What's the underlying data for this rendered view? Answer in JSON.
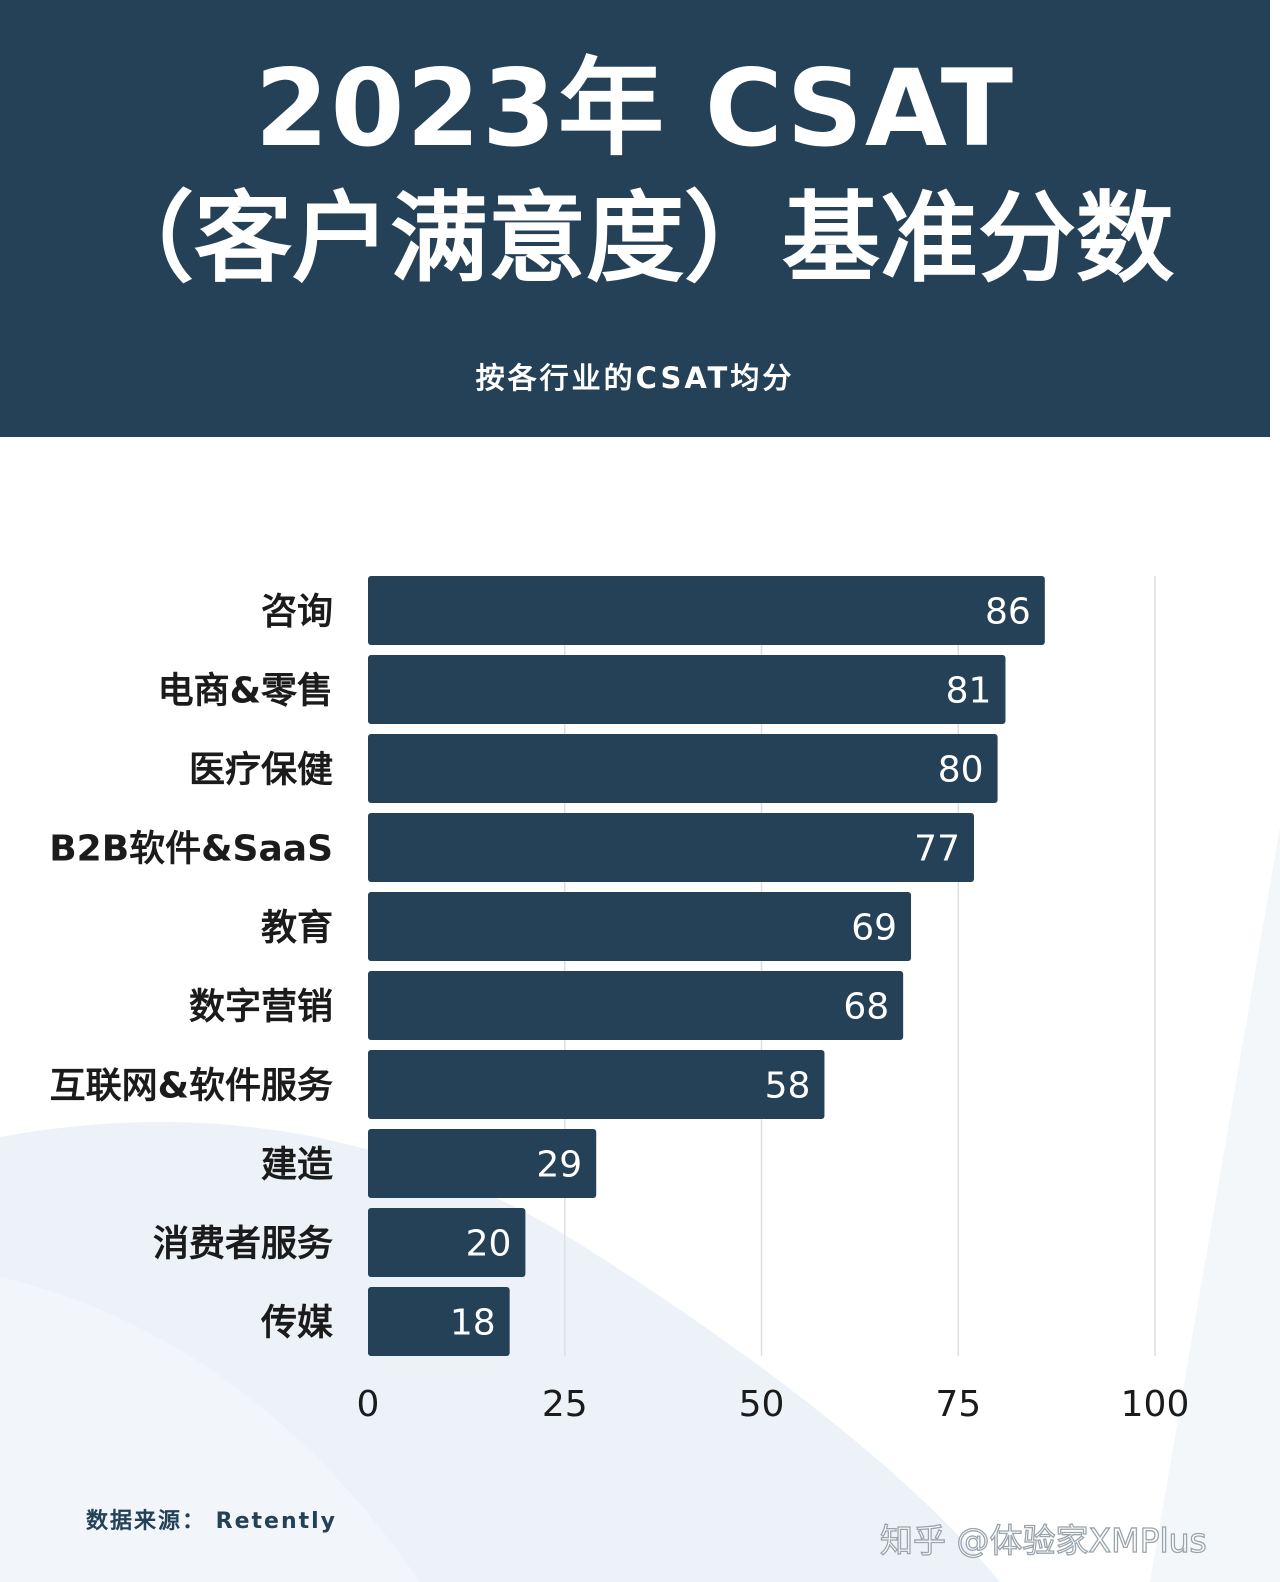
{
  "header": {
    "title_line1": "2023年 CSAT",
    "title_line2": "（客户满意度）基准分数",
    "subtitle": "按各行业的CSAT均分"
  },
  "footer": {
    "source": "数据来源： Retently",
    "watermark": "知乎 @体验家XMPlus"
  },
  "colors": {
    "header_bg": "#244157",
    "bar": "#244157",
    "bar_label": "#ffffff",
    "text": "#1b1b1b",
    "grid": "#dcdfe3",
    "decor": "#dde7f3"
  },
  "chart_data": {
    "type": "bar",
    "orientation": "horizontal",
    "categories": [
      "咨询",
      "电商&零售",
      "医疗保健",
      "B2B软件&SaaS",
      "教育",
      "数字营销",
      "互联网&软件服务",
      "建造",
      "消费者服务",
      "传媒"
    ],
    "values": [
      86,
      81,
      80,
      77,
      69,
      68,
      58,
      29,
      20,
      18
    ],
    "xlim": [
      0,
      100
    ],
    "xticks": [
      0,
      25,
      50,
      75,
      100
    ],
    "title": "2023年 CSAT（客户满意度）基准分数",
    "subtitle": "按各行业的CSAT均分",
    "xlabel": "",
    "ylabel": "",
    "grid": true,
    "data_labels": true,
    "legend": "none"
  }
}
